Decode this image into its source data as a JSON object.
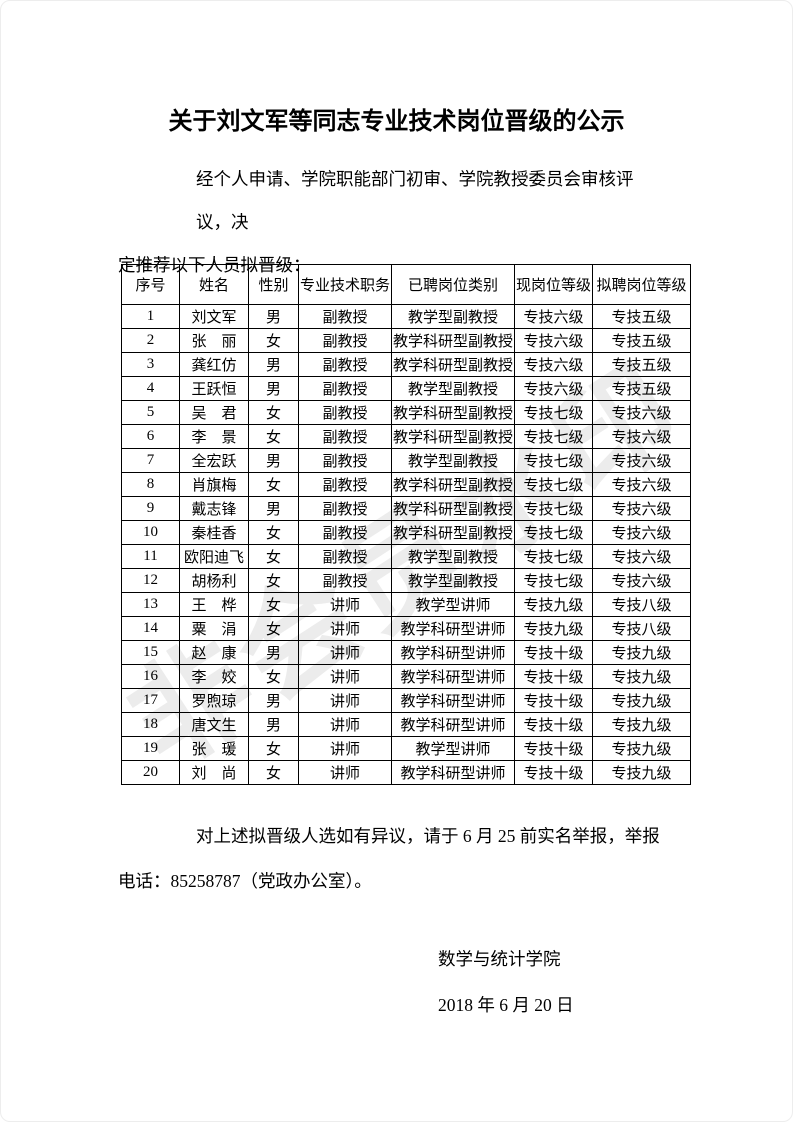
{
  "page": {
    "title": "关于刘文军等同志专业技术岗位晋级的公示",
    "intro": {
      "line1": "经个人申请、学院职能部门初审、学院教授委员会审核评议，决",
      "line2": "定推荐以下人员拟晋级："
    },
    "closing": {
      "line1": "对上述拟晋级人选如有异议，请于 6 月 25 前实名举报，举报",
      "line2": "电话：85258787（党政办公室）。"
    },
    "signature": "数学与统计学院",
    "date": "2018 年 6 月 20 日",
    "watermark": "非会员水印"
  },
  "table": {
    "headers": [
      "序号",
      "姓名",
      "性别",
      "专业技术职务",
      "已聘岗位类别",
      "现岗位等级",
      "拟聘岗位等级"
    ],
    "rows": [
      [
        "1",
        "刘文军",
        "男",
        "副教授",
        "教学型副教授",
        "专技六级",
        "专技五级"
      ],
      [
        "2",
        "张　丽",
        "女",
        "副教授",
        "教学科研型副教授",
        "专技六级",
        "专技五级"
      ],
      [
        "3",
        "龚红仿",
        "男",
        "副教授",
        "教学科研型副教授",
        "专技六级",
        "专技五级"
      ],
      [
        "4",
        "王跃恒",
        "男",
        "副教授",
        "教学型副教授",
        "专技六级",
        "专技五级"
      ],
      [
        "5",
        "吴　君",
        "女",
        "副教授",
        "教学科研型副教授",
        "专技七级",
        "专技六级"
      ],
      [
        "6",
        "李　景",
        "女",
        "副教授",
        "教学科研型副教授",
        "专技七级",
        "专技六级"
      ],
      [
        "7",
        "全宏跃",
        "男",
        "副教授",
        "教学型副教授",
        "专技七级",
        "专技六级"
      ],
      [
        "8",
        "肖旗梅",
        "女",
        "副教授",
        "教学科研型副教授",
        "专技七级",
        "专技六级"
      ],
      [
        "9",
        "戴志锋",
        "男",
        "副教授",
        "教学科研型副教授",
        "专技七级",
        "专技六级"
      ],
      [
        "10",
        "秦桂香",
        "女",
        "副教授",
        "教学科研型副教授",
        "专技七级",
        "专技六级"
      ],
      [
        "11",
        "欧阳迪飞",
        "女",
        "副教授",
        "教学型副教授",
        "专技七级",
        "专技六级"
      ],
      [
        "12",
        "胡杨利",
        "女",
        "副教授",
        "教学型副教授",
        "专技七级",
        "专技六级"
      ],
      [
        "13",
        "王　桦",
        "女",
        "讲师",
        "教学型讲师",
        "专技九级",
        "专技八级"
      ],
      [
        "14",
        "粟　涓",
        "女",
        "讲师",
        "教学科研型讲师",
        "专技九级",
        "专技八级"
      ],
      [
        "15",
        "赵　康",
        "男",
        "讲师",
        "教学科研型讲师",
        "专技十级",
        "专技九级"
      ],
      [
        "16",
        "李　姣",
        "女",
        "讲师",
        "教学科研型讲师",
        "专技十级",
        "专技九级"
      ],
      [
        "17",
        "罗煦琼",
        "男",
        "讲师",
        "教学科研型讲师",
        "专技十级",
        "专技九级"
      ],
      [
        "18",
        "唐文生",
        "男",
        "讲师",
        "教学科研型讲师",
        "专技十级",
        "专技九级"
      ],
      [
        "19",
        "张　瑗",
        "女",
        "讲师",
        "教学型讲师",
        "专技十级",
        "专技九级"
      ],
      [
        "20",
        "刘　尚",
        "女",
        "讲师",
        "教学科研型讲师",
        "专技十级",
        "专技九级"
      ]
    ]
  }
}
